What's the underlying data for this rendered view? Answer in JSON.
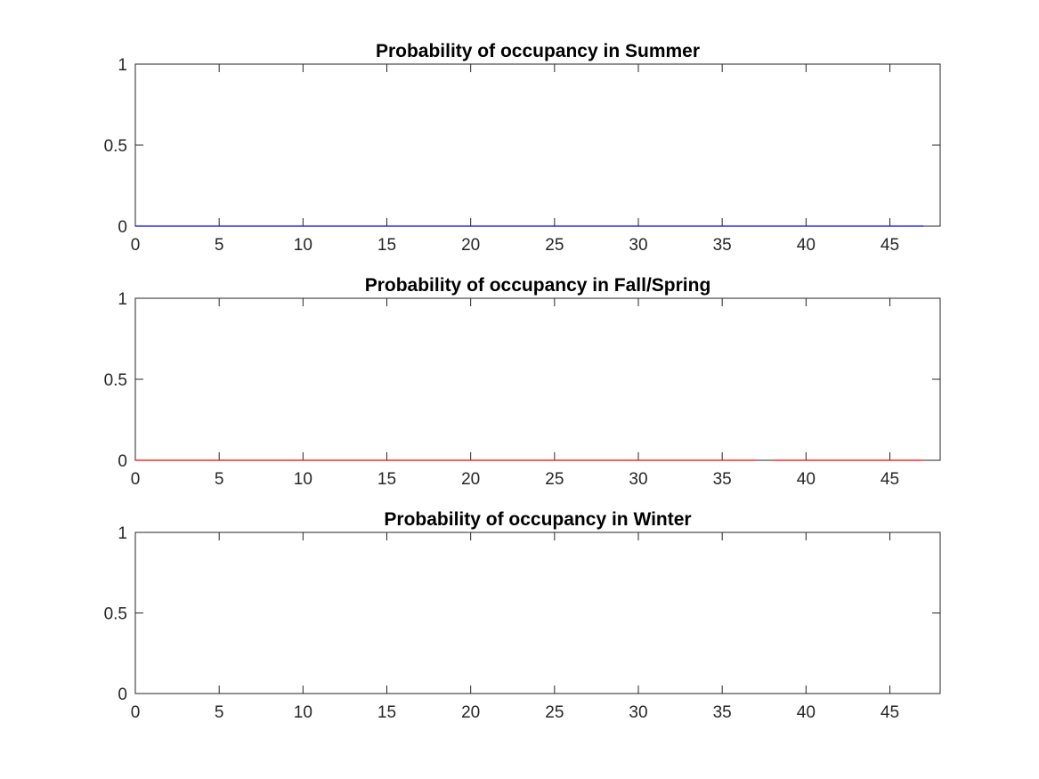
{
  "chart_data": [
    {
      "type": "line",
      "title": "Probability of occupancy in Summer",
      "xlabel": "",
      "ylabel": "",
      "xlim": [
        0,
        48
      ],
      "ylim": [
        0,
        1
      ],
      "x_ticks": [
        "0",
        "5",
        "10",
        "15",
        "20",
        "25",
        "30",
        "35",
        "40",
        "45"
      ],
      "y_ticks": [
        "0",
        "0.5",
        "1"
      ],
      "grid": false,
      "series": [
        {
          "color": "#0000ff",
          "segments": [
            {
              "x": [
                0,
                47
              ],
              "y": [
                0,
                0
              ]
            }
          ]
        }
      ]
    },
    {
      "type": "line",
      "title": "Probability of occupancy in Fall/Spring",
      "xlabel": "",
      "ylabel": "",
      "xlim": [
        0,
        48
      ],
      "ylim": [
        0,
        1
      ],
      "x_ticks": [
        "0",
        "5",
        "10",
        "15",
        "20",
        "25",
        "30",
        "35",
        "40",
        "45"
      ],
      "y_ticks": [
        "0",
        "0.5",
        "1"
      ],
      "grid": false,
      "series": [
        {
          "color": "#ff0000",
          "segments": [
            {
              "x": [
                0,
                37
              ],
              "y": [
                0,
                0
              ]
            },
            {
              "x": [
                38,
                47
              ],
              "y": [
                0,
                0
              ]
            }
          ]
        }
      ]
    },
    {
      "type": "line",
      "title": "Probability of occupancy in Winter",
      "xlabel": "",
      "ylabel": "",
      "xlim": [
        0,
        48
      ],
      "ylim": [
        0,
        1
      ],
      "x_ticks": [
        "0",
        "5",
        "10",
        "15",
        "20",
        "25",
        "30",
        "35",
        "40",
        "45"
      ],
      "y_ticks": [
        "0",
        "0.5",
        "1"
      ],
      "grid": false,
      "series": []
    }
  ]
}
